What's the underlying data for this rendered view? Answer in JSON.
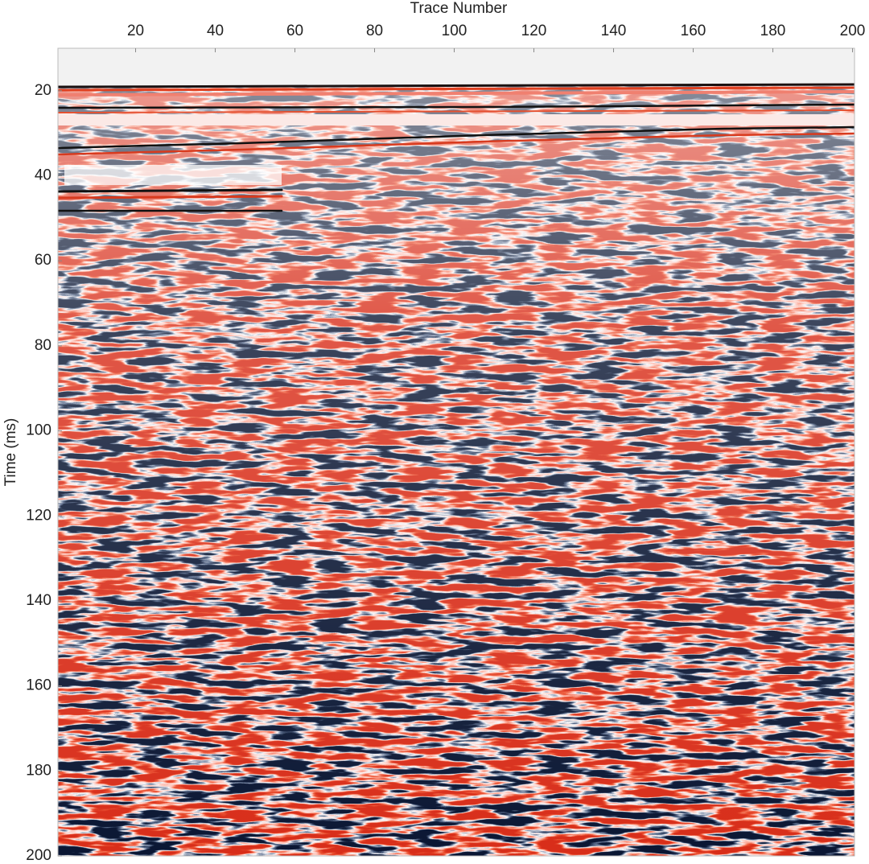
{
  "chart_data": {
    "type": "seismic",
    "xlabel": "Trace Number",
    "ylabel": "Time (ms)",
    "xlim": [
      0.5,
      200.5
    ],
    "xticks": [
      20,
      40,
      60,
      80,
      100,
      120,
      140,
      160,
      180,
      200
    ],
    "ylim": [
      10,
      200
    ],
    "yticks": [
      20,
      40,
      60,
      80,
      100,
      120,
      140,
      160,
      180,
      200
    ],
    "y_reversed": true
  }
}
